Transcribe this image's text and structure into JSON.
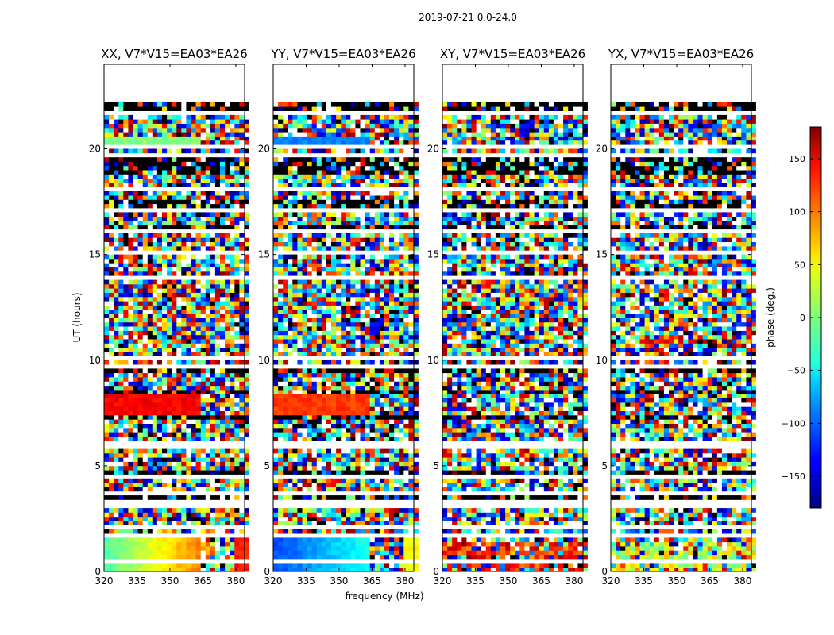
{
  "figure": {
    "suptitle": "2019-07-21 0.0-24.0"
  },
  "chart_data": {
    "type": "heatmap",
    "panels": [
      {
        "title": "XX, V7*V15=EA03*EA26",
        "pattern": "xx"
      },
      {
        "title": "YY, V7*V15=EA03*EA26",
        "pattern": "yy"
      },
      {
        "title": "XY, V7*V15=EA03*EA26",
        "pattern": "cross"
      },
      {
        "title": "YX, V7*V15=EA03*EA26",
        "pattern": "cross2"
      }
    ],
    "xlabel": "frequency (MHz)",
    "ylabel": "UT (hours)",
    "xlim": [
      320,
      384
    ],
    "ylim": [
      0,
      24
    ],
    "xticks": [
      320,
      335,
      350,
      365,
      380
    ],
    "yticks": [
      0,
      5,
      10,
      15,
      20
    ],
    "colorbar": {
      "label": "phase (deg.)",
      "range": [
        -180,
        180
      ],
      "ticks": [
        150,
        100,
        50,
        0,
        -50,
        -100,
        -150
      ],
      "tick_labels": [
        "150",
        "100",
        "50",
        "0",
        "−50",
        "−100",
        "−150"
      ],
      "colormap": "jet"
    }
  }
}
